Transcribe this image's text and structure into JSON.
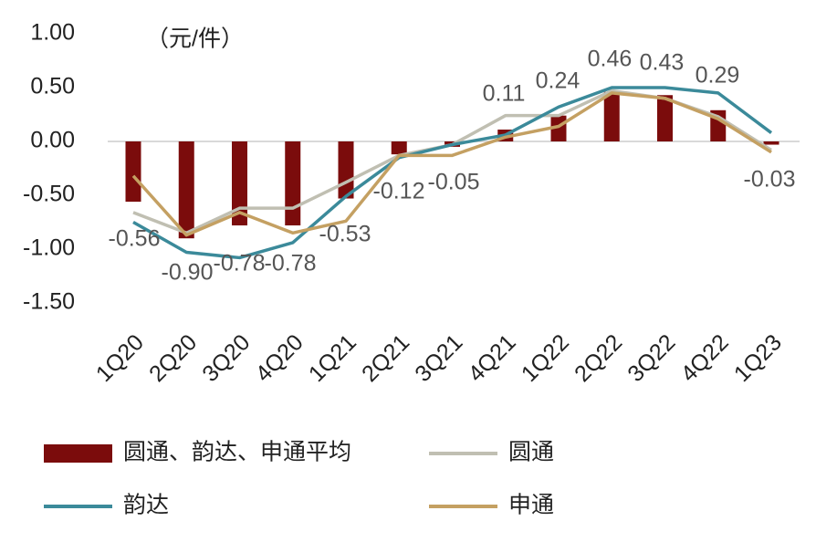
{
  "chart_data": {
    "type": "bar-line",
    "unit_label": "（元/件）",
    "categories": [
      "1Q20",
      "2Q20",
      "3Q20",
      "4Q20",
      "1Q21",
      "2Q21",
      "3Q21",
      "4Q21",
      "1Q22",
      "2Q22",
      "3Q22",
      "4Q22",
      "1Q23"
    ],
    "ylim": [
      -1.5,
      1.0
    ],
    "yticks": [
      {
        "value": 1.0,
        "label": "1.00"
      },
      {
        "value": 0.5,
        "label": "0.50"
      },
      {
        "value": 0,
        "label": "0.00"
      },
      {
        "value": -0.5,
        "label": "-0.50"
      },
      {
        "value": -1.0,
        "label": "-1.00"
      },
      {
        "value": -1.5,
        "label": "-1.50"
      }
    ],
    "series": [
      {
        "name": "圆通、韵达、申通平均",
        "type": "bar",
        "color": "#7b0c0c",
        "values": [
          -0.56,
          -0.9,
          -0.78,
          -0.78,
          -0.53,
          -0.12,
          -0.05,
          0.11,
          0.24,
          0.46,
          0.43,
          0.29,
          -0.03
        ],
        "value_labels": [
          "-0.56",
          "-0.90",
          "-0.78",
          "-0.78",
          "-0.53",
          "-0.12",
          "-0.05",
          "0.11",
          "0.24",
          "0.46",
          "0.43",
          "0.29",
          "-0.03"
        ]
      },
      {
        "name": "圆通",
        "type": "line",
        "color": "#c0bfb2",
        "values": [
          -0.66,
          -0.85,
          -0.62,
          -0.62,
          -0.38,
          -0.13,
          -0.03,
          0.24,
          0.24,
          0.47,
          0.4,
          0.23,
          -0.08
        ]
      },
      {
        "name": "韵达",
        "type": "line",
        "color": "#3b8a9a",
        "values": [
          -0.75,
          -1.03,
          -1.08,
          -0.94,
          -0.51,
          -0.15,
          -0.03,
          0.06,
          0.32,
          0.5,
          0.5,
          0.45,
          0.08
        ]
      },
      {
        "name": "申通",
        "type": "line",
        "color": "#c4a062",
        "values": [
          -0.32,
          -0.87,
          -0.66,
          -0.85,
          -0.74,
          -0.13,
          -0.13,
          0.04,
          0.14,
          0.45,
          0.4,
          0.21,
          -0.1
        ]
      }
    ]
  }
}
